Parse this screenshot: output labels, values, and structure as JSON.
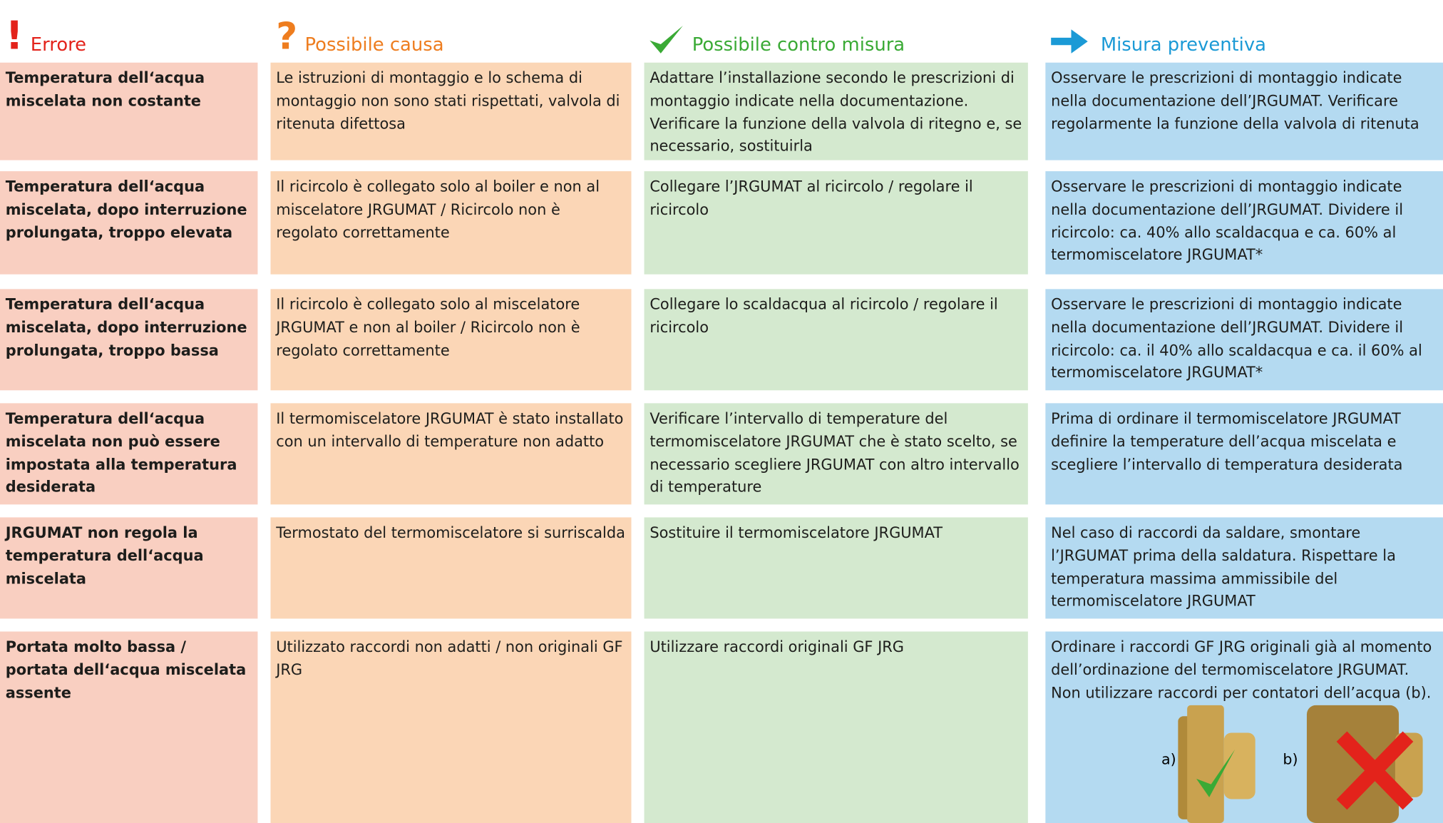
{
  "headers": [
    "Errore",
    "Possibile causa",
    "Possibile contro misura",
    "Misura preventiva"
  ],
  "rows": [
    [
      "Temperatura dell‘acqua miscelata non costante",
      "Le istruzioni di montaggio e lo schema di montaggio non sono stati rispettati, valvola di ritenuta difettosa",
      "Adattare l’installazione secondo le prescrizioni di montaggio indicate nella documentazione. Verificare la funzione della valvola di ritegno e, se necessario, sostituirla",
      "Osservare le prescrizioni di montaggio indicate nella documentazione dell’JRGUMAT. Verificare regolarmente la funzione della valvola di ritenuta"
    ],
    [
      "Temperatura dell‘acqua miscelata, dopo interruzione prolungata, troppo elevata",
      "Il ricircolo è collegato solo al boiler e non al miscelatore JRGUMAT / Ricircolo non è regolato correttamente",
      "Collegare l’JRGUMAT al ricircolo / regolare il ricircolo",
      "Osservare le prescrizioni di montaggio indicate nella documentazione dell’JRGUMAT. Dividere il ricircolo: ca. 40% allo scaldacqua e  ca. 60% al termomiscelatore JRGUMAT*"
    ],
    [
      "Temperatura dell‘acqua miscelata, dopo interruzione prolungata, troppo bassa",
      "Il ricircolo è collegato solo al miscelatore JRGUMAT e non al boiler / Ricircolo non è regolato correttamente",
      "Collegare lo scaldacqua al ricircolo / regolare il ricircolo",
      "Osservare le prescrizioni di montaggio indicate nella documentazione dell’JRGUMAT. Dividere il ricircolo: ca. il 40% allo scaldacqua e ca. il 60% al termomiscelatore JRGUMAT*"
    ],
    [
      "Temperatura dell‘acqua miscelata non può essere impostata alla temperatura desiderata",
      "Il termomiscelatore JRGUMAT è stato installato con un intervallo di temperature non adatto",
      "Verificare l’intervallo di temperature del termomiscelatore JRGUMAT che è stato scelto, se necessario scegliere JRGUMAT con altro intervallo di temperature",
      "Prima di ordinare il termomiscelatore JRGUMAT definire la temperature dell’acqua miscelata e scegliere l’intervallo di temperatura desiderata"
    ],
    [
      "JRGUMAT non regola la temperatura dell‘acqua miscelata",
      "Termostato del termomiscelatore si surriscalda",
      "Sostituire il termomiscelatore JRGUMAT",
      "Nel caso di raccordi da saldare, smontare l’JRGUMAT prima della saldatura. Rispettare la temperatura massima ammissibile del termomiscelatore JRGUMAT"
    ],
    [
      "Portata molto bassa / portata dell‘acqua miscelata assente",
      "Utilizzato raccordi non adatti / non originali GF JRG",
      "Utilizzare raccordi originali GF JRG",
      "Ordinare i raccordi GF JRG originali già al momento dell’ordinazione del termomiscelatore JRGUMAT. Non utilizzare raccordi per contatori dell’acqua (b)."
    ]
  ],
  "image_labels": [
    "a)",
    "b)"
  ]
}
